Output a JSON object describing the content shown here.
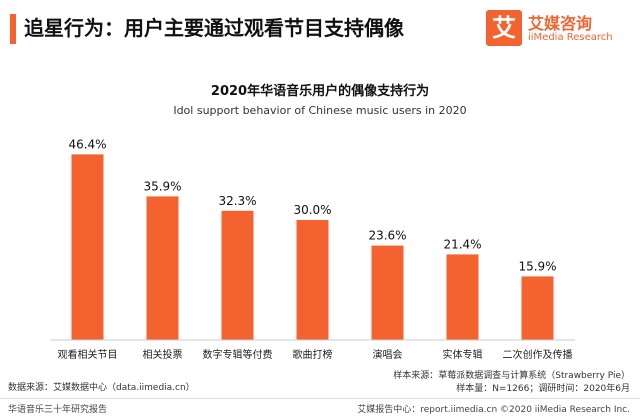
{
  "header": {
    "title": "追星行为：用户主要通过观看节目支持偶像",
    "brand_mark": "艾",
    "brand_name": "艾媒咨询",
    "brand_name_en": "iiMedia Research"
  },
  "colors": {
    "accent": "#f4632f",
    "bar": "#f4632f"
  },
  "chart_data": {
    "type": "bar",
    "title": "2020年华语音乐用户的偶像支持行为",
    "subtitle": "Idol support behavior of Chinese music users in 2020",
    "categories": [
      "观看相关节目",
      "相关投票",
      "数字专辑等付费",
      "歌曲打榜",
      "演唱会",
      "实体专辑",
      "二次创作及传播"
    ],
    "values": [
      46.4,
      35.9,
      32.3,
      30.0,
      23.6,
      21.4,
      15.9
    ],
    "value_labels": [
      "46.4%",
      "35.9%",
      "32.3%",
      "30.0%",
      "23.6%",
      "21.4%",
      "15.9%"
    ],
    "unit": "%",
    "ylim": [
      0,
      50
    ],
    "grid": false,
    "legend": "none"
  },
  "notes": {
    "source": "数据来源：艾媒数据中心（data.iimedia.cn）",
    "sample_source": "样本来源：草莓派数据调查与计算系统（Strawberry Pie）",
    "sample_size": "样本量：N=1266；调研时间：2020年6月"
  },
  "footer": {
    "left": "华语音乐三十年研究报告",
    "right": "艾媒报告中心：report.iimedia.cn  ©2020  iiMedia Research  Inc."
  }
}
